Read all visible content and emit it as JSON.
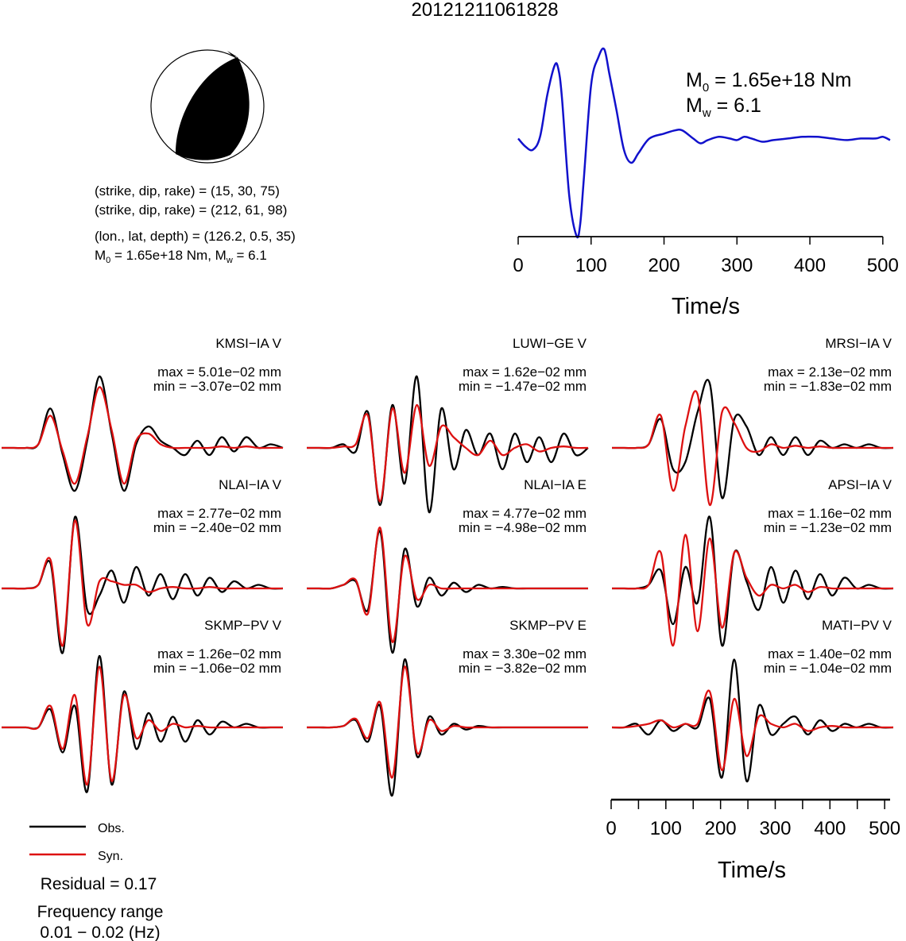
{
  "title": "20121211061828",
  "focal_mechanism": {
    "planes": [
      "(strike, dip, rake) = (15, 30, 75)",
      "(strike, dip, rake) = (212, 61, 98)"
    ],
    "location": "(lon., lat, depth) = (126.2, 0.5, 35)",
    "moment_line": {
      "m0_prefix": "M",
      "m0_sub": "0",
      "m0_value": " = 1.65e+18 Nm, M",
      "mw_sub": "w",
      "mw_value": " = 6.1"
    }
  },
  "stf": {
    "m0_label": {
      "prefix": "M",
      "sub": "0",
      "value": " = 1.65e+18 Nm"
    },
    "mw_label": {
      "prefix": "M",
      "sub": "w",
      "value": " = 6.1"
    },
    "xlabel": "Time/s",
    "ticks": [
      "0",
      "100",
      "200",
      "300",
      "400",
      "500"
    ]
  },
  "waveform_axis": {
    "xlabel": "Time/s",
    "ticks": [
      "0",
      "100",
      "200",
      "300",
      "400",
      "500"
    ]
  },
  "legend": {
    "observed": "Obs.",
    "synthetic": "Syn."
  },
  "residual": "Residual = 0.17",
  "frequency": {
    "label": "Frequency range",
    "value": "0.01 − 0.02 (Hz)"
  },
  "colors": {
    "observed": "#000000",
    "synthetic": "#dd1111",
    "stf": "#1111cc"
  },
  "chart_data": [
    {
      "type": "line",
      "name": "source time function",
      "xlabel": "Time/s",
      "xlim": [
        0,
        510
      ],
      "x": [
        0,
        10,
        20,
        30,
        40,
        50,
        55,
        60,
        70,
        80,
        85,
        90,
        100,
        110,
        118,
        125,
        135,
        145,
        155,
        165,
        180,
        200,
        215,
        225,
        240,
        250,
        260,
        275,
        290,
        300,
        310,
        320,
        335,
        350,
        370,
        390,
        410,
        430,
        450,
        470,
        490,
        500,
        510
      ],
      "values": [
        0.55,
        0.5,
        0.48,
        0.56,
        0.82,
        1.0,
        0.98,
        0.8,
        0.2,
        -0.05,
        0.02,
        0.3,
        0.88,
        1.05,
        1.1,
        0.95,
        0.72,
        0.48,
        0.4,
        0.46,
        0.55,
        0.58,
        0.6,
        0.6,
        0.55,
        0.52,
        0.54,
        0.56,
        0.55,
        0.54,
        0.56,
        0.55,
        0.53,
        0.54,
        0.55,
        0.56,
        0.56,
        0.55,
        0.54,
        0.55,
        0.55,
        0.56,
        0.54
      ]
    },
    {
      "type": "line",
      "panels": [
        {
          "station": "KMSI−IA V",
          "max": "max = 5.01e−02 mm",
          "min": "min = −3.07e−02 mm",
          "obs": [
            0,
            0,
            0,
            0.05,
            0.55,
            -0.1,
            -0.6,
            0.1,
            1.0,
            0.2,
            -0.6,
            0.05,
            0.3,
            0.1,
            0,
            -0.1,
            0.1,
            -0.1,
            0.15,
            -0.05,
            0.15,
            0,
            0.05,
            0
          ],
          "syn": [
            0,
            0,
            0,
            0.05,
            0.45,
            -0.05,
            -0.5,
            0.15,
            0.85,
            0.25,
            -0.5,
            0.1,
            0.2,
            0.05,
            0,
            0,
            0,
            0,
            0.02,
            0,
            0.02,
            0,
            0,
            0
          ]
        },
        {
          "station": "LUWI−GE V",
          "max": "max = 1.62e−02 mm",
          "min": "min = −1.47e−02 mm",
          "obs": [
            0,
            0,
            0,
            0.05,
            -0.05,
            0.5,
            -0.8,
            0.6,
            -0.5,
            1.0,
            -0.9,
            0.55,
            -0.3,
            0.25,
            -0.1,
            0.2,
            -0.3,
            0.2,
            -0.2,
            0.15,
            -0.2,
            0.2,
            -0.1,
            0
          ],
          "syn": [
            0,
            0,
            0,
            0.02,
            0.05,
            0.45,
            -0.75,
            0.55,
            -0.35,
            0.6,
            -0.25,
            0.3,
            0.15,
            0,
            -0.1,
            0.1,
            -0.1,
            0,
            0.05,
            -0.05,
            0,
            0.02,
            0,
            0
          ]
        },
        {
          "station": "MRSI−IA V",
          "max": "max = 2.13e−02 mm",
          "min": "min = −1.83e−02 mm",
          "obs": [
            0,
            0,
            0,
            0.05,
            0.4,
            -0.3,
            -0.2,
            0.5,
            0.9,
            -0.7,
            0.4,
            0.3,
            -0.1,
            0.15,
            -0.1,
            0.15,
            -0.1,
            0.1,
            0,
            0.05,
            0,
            0.05,
            0,
            0
          ],
          "syn": [
            0,
            0,
            0,
            0.05,
            0.45,
            -0.6,
            0.3,
            0.75,
            -0.8,
            0.5,
            0.35,
            0,
            -0.05,
            0.05,
            0,
            0.03,
            0,
            0.02,
            0,
            0,
            0,
            0,
            0,
            0
          ]
        },
        {
          "station": "NLAI−IA V",
          "max": "max = 2.77e−02 mm",
          "min": "min = −2.40e−02 mm",
          "obs": [
            0,
            0,
            0,
            0.05,
            0.35,
            -0.9,
            1.0,
            -0.3,
            -0.1,
            0.25,
            -0.2,
            0.3,
            -0.1,
            0.2,
            -0.15,
            0.2,
            -0.1,
            0.15,
            -0.05,
            0.1,
            0,
            0.05,
            0,
            0
          ],
          "syn": [
            0,
            0,
            0,
            0.05,
            0.4,
            -0.8,
            0.95,
            -0.5,
            0.1,
            0.1,
            0.05,
            0.05,
            -0.05,
            0,
            0.02,
            0,
            0,
            0.02,
            0,
            0,
            0,
            0,
            0,
            0
          ]
        },
        {
          "station": "NLAI−IA E",
          "max": "max = 4.77e−02 mm",
          "min": "min = −4.98e−02 mm",
          "obs": [
            0,
            0,
            0,
            0.05,
            0.1,
            -0.3,
            0.8,
            -0.9,
            0.55,
            -0.25,
            0.15,
            -0.1,
            0.08,
            -0.05,
            0.05,
            0,
            0.02,
            0,
            0,
            0,
            0,
            0,
            0,
            0
          ],
          "syn": [
            0,
            0,
            0,
            0.05,
            0.12,
            -0.35,
            0.85,
            -0.75,
            0.45,
            -0.15,
            0.05,
            0,
            0,
            0,
            0,
            0,
            0,
            0,
            0,
            0,
            0,
            0,
            0,
            0
          ]
        },
        {
          "station": "APSI−IA V",
          "max": "max = 1.16e−02 mm",
          "min": "min = −1.23e−02 mm",
          "obs": [
            0,
            0,
            0,
            0.05,
            0.25,
            -0.5,
            0.3,
            -0.2,
            1.0,
            -0.8,
            0.5,
            0.1,
            -0.3,
            0.3,
            -0.2,
            0.25,
            -0.15,
            0.2,
            -0.1,
            0.15,
            0,
            0.05,
            0,
            0
          ],
          "syn": [
            0,
            0,
            0,
            0.05,
            0.5,
            -0.8,
            0.75,
            -0.6,
            0.7,
            -0.55,
            0.5,
            0.15,
            -0.1,
            0.05,
            0,
            0.05,
            -0.05,
            0.02,
            0,
            0,
            0,
            0,
            0,
            0
          ]
        },
        {
          "station": "SKMP−PV V",
          "max": "max = 1.26e−02 mm",
          "min": "min = −1.06e−02 mm",
          "obs": [
            0,
            0,
            0,
            0,
            0.25,
            -0.35,
            0.3,
            -0.9,
            1.0,
            -0.8,
            0.5,
            -0.3,
            0.2,
            -0.2,
            0.15,
            -0.2,
            0.1,
            -0.1,
            0.08,
            0,
            0.05,
            0,
            0,
            0
          ],
          "syn": [
            0,
            0,
            0,
            0,
            0.3,
            -0.3,
            0.45,
            -0.8,
            0.85,
            -0.75,
            0.45,
            -0.15,
            0.1,
            -0.05,
            0.05,
            0,
            0.02,
            0,
            0,
            0,
            0,
            0,
            0,
            0
          ],
          "show_axis": false
        },
        {
          "station": "SKMP−PV E",
          "max": "max = 3.30e−02 mm",
          "min": "min = −3.82e−02 mm",
          "obs": [
            0,
            0,
            0,
            0.02,
            0.1,
            -0.2,
            0.3,
            -0.95,
            0.95,
            -0.4,
            0.15,
            -0.1,
            0.05,
            -0.03,
            0.02,
            0,
            0,
            0,
            0,
            0,
            0,
            0,
            0,
            0
          ],
          "syn": [
            0,
            0,
            0,
            0.02,
            0.12,
            -0.15,
            0.35,
            -0.7,
            0.85,
            -0.35,
            0.1,
            -0.05,
            0.02,
            0,
            0,
            0,
            0,
            0,
            0,
            0,
            0,
            0,
            0,
            0
          ]
        },
        {
          "station": "MATI−PV V",
          "max": "max = 1.40e−02 mm",
          "min": "min = −1.04e−02 mm",
          "obs": [
            0,
            0,
            0.05,
            -0.1,
            0.1,
            -0.05,
            0.05,
            0,
            0.4,
            -0.7,
            0.95,
            -0.75,
            0.3,
            -0.1,
            0.05,
            0.15,
            -0.1,
            0.1,
            -0.05,
            0.05,
            0,
            0.05,
            0,
            0
          ],
          "syn": [
            0,
            0,
            0.02,
            0.05,
            0.1,
            0,
            0.05,
            0.05,
            0.5,
            -0.6,
            0.4,
            -0.4,
            0.15,
            0.05,
            0,
            0.05,
            -0.05,
            0,
            0.02,
            0,
            0,
            0,
            0,
            0
          ]
        }
      ]
    }
  ]
}
